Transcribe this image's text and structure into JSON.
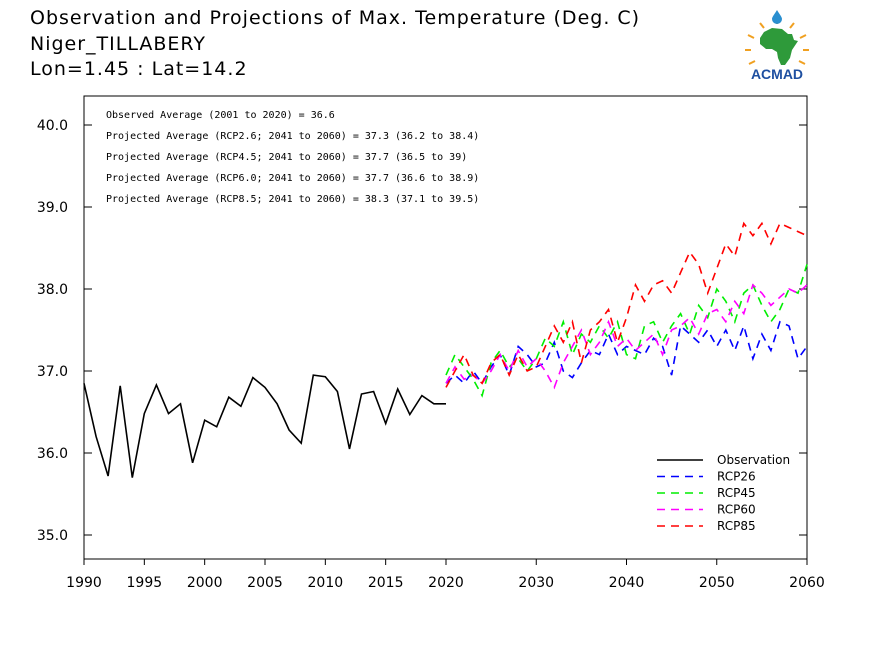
{
  "header": {
    "title": "Observation and Projections of Max. Temperature (Deg. C)",
    "location": "Niger_TILLABERY",
    "coords": "Lon=1.45 : Lat=14.2",
    "logo_text": "ACMAD"
  },
  "chart_data": {
    "type": "line",
    "title": "Observation and Projections of Max. Temperature (Deg. C)",
    "xlim": [
      1990,
      2060
    ],
    "ylim": [
      34.7,
      40.4
    ],
    "grid": false,
    "legend_position": "bottom-right",
    "x_ticks_left": [
      1990,
      1995,
      2000,
      2005,
      2010,
      2015,
      2020
    ],
    "x_ticks_right": [
      2020,
      2030,
      2040,
      2050,
      2060
    ],
    "y_ticks": [
      "35.0",
      "36.0",
      "37.0",
      "38.0",
      "39.0",
      "40.0"
    ],
    "annotations": [
      "Observed Average (2001 to 2020) = 36.6",
      "Projected Average (RCP2.6; 2041 to 2060) = 37.3 (36.2 to 38.4)",
      "Projected Average (RCP4.5; 2041 to 2060) = 37.7 (36.5 to 39)",
      "Projected Average (RCP6.0; 2041 to 2060) = 37.7 (36.6 to 38.9)",
      "Projected Average (RCP8.5; 2041 to 2060) = 38.3 (37.1 to 39.5)"
    ],
    "series": [
      {
        "name": "Observation",
        "color": "#000000",
        "dashed": false,
        "x": [
          1990,
          1991,
          1992,
          1993,
          1994,
          1995,
          1996,
          1997,
          1998,
          1999,
          2000,
          2001,
          2002,
          2003,
          2004,
          2005,
          2006,
          2007,
          2008,
          2009,
          2010,
          2011,
          2012,
          2013,
          2014,
          2015,
          2016,
          2017,
          2018,
          2019,
          2020
        ],
        "values": [
          36.85,
          36.2,
          35.72,
          36.82,
          35.7,
          36.48,
          36.83,
          36.48,
          36.6,
          35.88,
          36.4,
          36.32,
          36.68,
          36.57,
          36.92,
          36.8,
          36.6,
          36.28,
          36.12,
          36.95,
          36.93,
          36.75,
          36.05,
          36.72,
          36.75,
          36.36,
          36.78,
          36.47,
          36.7,
          36.6,
          36.6
        ]
      },
      {
        "name": "RCP26",
        "color": "#0000ff",
        "dashed": true,
        "x": [
          2020,
          2021,
          2022,
          2023,
          2024,
          2025,
          2026,
          2027,
          2028,
          2029,
          2030,
          2031,
          2032,
          2033,
          2034,
          2035,
          2036,
          2037,
          2038,
          2039,
          2040,
          2041,
          2042,
          2043,
          2044,
          2045,
          2046,
          2047,
          2048,
          2049,
          2050,
          2051,
          2052,
          2053,
          2054,
          2055,
          2056,
          2057,
          2058,
          2059,
          2060
        ],
        "values": [
          36.85,
          36.95,
          36.85,
          37.0,
          36.85,
          37.05,
          37.2,
          36.95,
          37.3,
          37.2,
          37.05,
          37.1,
          37.35,
          37.0,
          36.92,
          37.1,
          37.25,
          37.2,
          37.45,
          37.2,
          37.3,
          37.25,
          37.2,
          37.4,
          37.3,
          36.95,
          37.55,
          37.45,
          37.35,
          37.5,
          37.3,
          37.5,
          37.25,
          37.55,
          37.15,
          37.45,
          37.25,
          37.6,
          37.55,
          37.15,
          37.3
        ]
      },
      {
        "name": "RCP45",
        "color": "#00ee00",
        "dashed": true,
        "x": [
          2020,
          2021,
          2022,
          2023,
          2024,
          2025,
          2026,
          2027,
          2028,
          2029,
          2030,
          2031,
          2032,
          2033,
          2034,
          2035,
          2036,
          2037,
          2038,
          2039,
          2040,
          2041,
          2042,
          2043,
          2044,
          2045,
          2046,
          2047,
          2048,
          2049,
          2050,
          2051,
          2052,
          2053,
          2054,
          2055,
          2056,
          2057,
          2058,
          2059,
          2060
        ],
        "values": [
          36.95,
          37.2,
          37.05,
          36.9,
          36.7,
          37.1,
          37.25,
          37.05,
          37.15,
          37.0,
          37.15,
          37.4,
          37.3,
          37.6,
          37.2,
          37.45,
          37.35,
          37.55,
          37.4,
          37.6,
          37.2,
          37.15,
          37.55,
          37.6,
          37.35,
          37.55,
          37.7,
          37.45,
          37.8,
          37.65,
          38.0,
          37.85,
          37.6,
          37.95,
          38.05,
          37.8,
          37.6,
          37.75,
          38.0,
          37.95,
          38.3
        ]
      },
      {
        "name": "RCP60",
        "color": "#ff00ff",
        "dashed": true,
        "x": [
          2020,
          2021,
          2022,
          2023,
          2024,
          2025,
          2026,
          2027,
          2028,
          2029,
          2030,
          2031,
          2032,
          2033,
          2034,
          2035,
          2036,
          2037,
          2038,
          2039,
          2040,
          2041,
          2042,
          2043,
          2044,
          2045,
          2046,
          2047,
          2048,
          2049,
          2050,
          2051,
          2052,
          2053,
          2054,
          2055,
          2056,
          2057,
          2058,
          2059,
          2060
        ],
        "values": [
          36.85,
          37.05,
          36.9,
          36.95,
          36.85,
          37.0,
          37.2,
          37.0,
          37.25,
          37.05,
          37.15,
          37.0,
          36.8,
          37.1,
          37.3,
          37.5,
          37.2,
          37.35,
          37.6,
          37.3,
          37.4,
          37.25,
          37.35,
          37.45,
          37.2,
          37.5,
          37.55,
          37.65,
          37.45,
          37.7,
          37.75,
          37.6,
          37.85,
          37.7,
          38.05,
          37.95,
          37.8,
          37.9,
          38.0,
          37.95,
          38.05
        ]
      },
      {
        "name": "RCP85",
        "color": "#ff0000",
        "dashed": true,
        "x": [
          2020,
          2021,
          2022,
          2023,
          2024,
          2025,
          2026,
          2027,
          2028,
          2029,
          2030,
          2031,
          2032,
          2033,
          2034,
          2035,
          2036,
          2037,
          2038,
          2039,
          2040,
          2041,
          2042,
          2043,
          2044,
          2045,
          2046,
          2047,
          2048,
          2049,
          2050,
          2051,
          2052,
          2053,
          2054,
          2055,
          2056,
          2057,
          2058,
          2059,
          2060
        ],
        "values": [
          36.8,
          37.0,
          37.2,
          36.95,
          36.85,
          37.1,
          37.2,
          36.95,
          37.2,
          37.0,
          37.05,
          37.3,
          37.55,
          37.35,
          37.6,
          37.1,
          37.5,
          37.6,
          37.75,
          37.35,
          37.65,
          38.05,
          37.85,
          38.05,
          38.1,
          37.95,
          38.2,
          38.45,
          38.3,
          37.95,
          38.25,
          38.55,
          38.4,
          38.8,
          38.65,
          38.8,
          38.55,
          38.8,
          38.75,
          38.7,
          38.65
        ]
      }
    ]
  }
}
